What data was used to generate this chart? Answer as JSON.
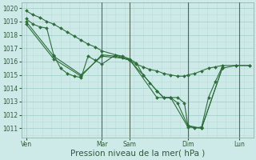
{
  "background_color": "#ceeae8",
  "grid_color_minor": "#b8ddd8",
  "grid_color_major": "#9eccc6",
  "line_color": "#2d6e3a",
  "marker_color": "#2d6e3a",
  "xlabel": "Pression niveau de la mer( hPa )",
  "xlabel_fontsize": 7.5,
  "ytick_labels": [
    1011,
    1012,
    1013,
    1014,
    1015,
    1016,
    1017,
    1018,
    1019,
    1020
  ],
  "ylim": [
    1010.3,
    1020.4
  ],
  "xlim": [
    -2,
    200
  ],
  "xtick_positions": [
    2,
    68,
    92,
    143,
    188
  ],
  "xtick_labels": [
    "Ven",
    "Mar",
    "Sam",
    "Dim",
    "Lun"
  ],
  "vlines_dark": [
    68,
    143,
    188
  ],
  "vlines_light": [
    92
  ],
  "series1_x": [
    2,
    8,
    14,
    20,
    26,
    32,
    38,
    44,
    50,
    56,
    62,
    68,
    80,
    86,
    92,
    98,
    104,
    110,
    116,
    122,
    128,
    134,
    140,
    143,
    149,
    155,
    161,
    167,
    173
  ],
  "series1_y": [
    1019.2,
    1018.8,
    1018.6,
    1018.5,
    1016.5,
    1015.5,
    1015.1,
    1014.9,
    1014.8,
    1016.4,
    1016.1,
    1015.8,
    1016.5,
    1016.4,
    1016.2,
    1015.9,
    1015.0,
    1014.4,
    1013.8,
    1013.3,
    1013.3,
    1013.3,
    1012.9,
    1011.2,
    1011.0,
    1011.1,
    1013.3,
    1014.5,
    1015.6
  ],
  "series2_x": [
    2,
    8,
    14,
    20,
    26,
    32,
    38,
    44,
    50,
    56,
    62,
    68,
    80,
    86,
    92,
    98,
    104,
    110,
    116,
    122,
    128,
    134,
    140,
    143,
    149,
    155,
    161,
    167,
    173,
    185,
    197
  ],
  "series2_y": [
    1019.8,
    1019.5,
    1019.3,
    1019.0,
    1018.8,
    1018.5,
    1018.2,
    1017.9,
    1017.6,
    1017.3,
    1017.1,
    1016.8,
    1016.5,
    1016.3,
    1016.1,
    1015.8,
    1015.6,
    1015.4,
    1015.3,
    1015.1,
    1015.0,
    1014.9,
    1014.9,
    1015.0,
    1015.1,
    1015.3,
    1015.5,
    1015.6,
    1015.7,
    1015.7,
    1015.7
  ],
  "series3_x": [
    2,
    26,
    50,
    68,
    92,
    116,
    128,
    143,
    155,
    173,
    185,
    197
  ],
  "series3_y": [
    1019.0,
    1016.4,
    1015.0,
    1016.4,
    1016.2,
    1013.3,
    1013.3,
    1011.1,
    1011.0,
    1015.5,
    1015.7,
    1015.7
  ],
  "series4_x": [
    2,
    26,
    50,
    68,
    80,
    92,
    104,
    116,
    122,
    128,
    134,
    143,
    155,
    173
  ],
  "series4_y": [
    1018.8,
    1016.2,
    1014.9,
    1016.5,
    1016.4,
    1016.1,
    1015.0,
    1013.8,
    1013.3,
    1013.3,
    1012.9,
    1011.2,
    1011.0,
    1015.5
  ]
}
